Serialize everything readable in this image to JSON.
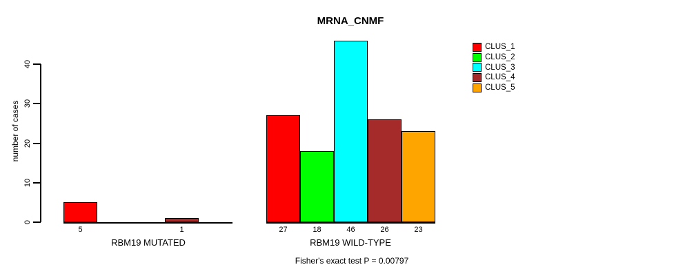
{
  "title": "MRNA_CNMF",
  "footer_note": "Fisher's exact test P = 0.00797",
  "legend": {
    "items": [
      {
        "label": "CLUS_1",
        "color": "#ff0000"
      },
      {
        "label": "CLUS_2",
        "color": "#00ff00"
      },
      {
        "label": "CLUS_3",
        "color": "#00ffff"
      },
      {
        "label": "CLUS_4",
        "color": "#a52a2a"
      },
      {
        "label": "CLUS_5",
        "color": "#ffa500"
      }
    ]
  },
  "chart_data": {
    "type": "bar",
    "title": "MRNA_CNMF",
    "ylabel": "number of cases",
    "xlabel": "",
    "yticks": [
      0,
      10,
      20,
      30,
      40
    ],
    "ylim": [
      0,
      46
    ],
    "grid": false,
    "legend_position": "top-right",
    "annotation": "Fisher's exact test P = 0.00797",
    "series": [
      "CLUS_1",
      "CLUS_2",
      "CLUS_3",
      "CLUS_4",
      "CLUS_5"
    ],
    "series_colors": [
      "#ff0000",
      "#00ff00",
      "#00ffff",
      "#a52a2a",
      "#ffa500"
    ],
    "groups": [
      {
        "label": "RBM19 MUTATED",
        "values": [
          5,
          0,
          0,
          1,
          0
        ]
      },
      {
        "label": "RBM19 WILD-TYPE",
        "values": [
          27,
          18,
          46,
          26,
          23
        ]
      }
    ]
  }
}
